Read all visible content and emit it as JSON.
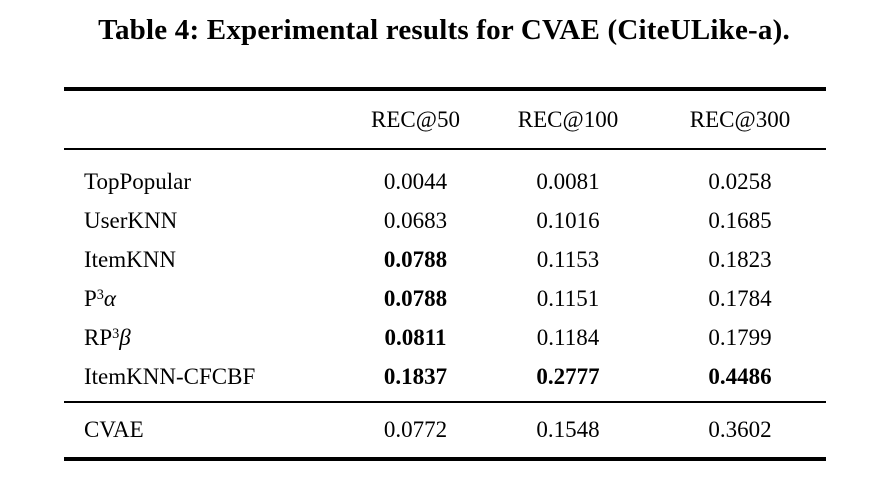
{
  "caption": "Table 4: Experimental results for CVAE (CiteULike-a).",
  "table": {
    "header": [
      "",
      "REC@50",
      "REC@100",
      "REC@300"
    ],
    "rows": [
      {
        "label_parts": [
          {
            "t": "TopPopular"
          }
        ],
        "values": [
          "0.0044",
          "0.0081",
          "0.0258"
        ],
        "bold": [
          false,
          false,
          false
        ]
      },
      {
        "label_parts": [
          {
            "t": "UserKNN"
          }
        ],
        "values": [
          "0.0683",
          "0.1016",
          "0.1685"
        ],
        "bold": [
          false,
          false,
          false
        ]
      },
      {
        "label_parts": [
          {
            "t": "ItemKNN"
          }
        ],
        "values": [
          "0.0788",
          "0.1153",
          "0.1823"
        ],
        "bold": [
          true,
          false,
          false
        ]
      },
      {
        "label_parts": [
          {
            "t": "P"
          },
          {
            "t": "3",
            "sup": true
          },
          {
            "t": "α",
            "italic": true
          }
        ],
        "values": [
          "0.0788",
          "0.1151",
          "0.1784"
        ],
        "bold": [
          true,
          false,
          false
        ]
      },
      {
        "label_parts": [
          {
            "t": "RP"
          },
          {
            "t": "3",
            "sup": true
          },
          {
            "t": "β",
            "italic": true
          }
        ],
        "values": [
          "0.0811",
          "0.1184",
          "0.1799"
        ],
        "bold": [
          true,
          false,
          false
        ]
      },
      {
        "label_parts": [
          {
            "t": "ItemKNN-CFCBF"
          }
        ],
        "values": [
          "0.1837",
          "0.2777",
          "0.4486"
        ],
        "bold": [
          true,
          true,
          true
        ]
      }
    ],
    "footer_rows": [
      {
        "label_parts": [
          {
            "t": "CVAE"
          }
        ],
        "values": [
          "0.0772",
          "0.1548",
          "0.3602"
        ],
        "bold": [
          false,
          false,
          false
        ]
      }
    ]
  }
}
